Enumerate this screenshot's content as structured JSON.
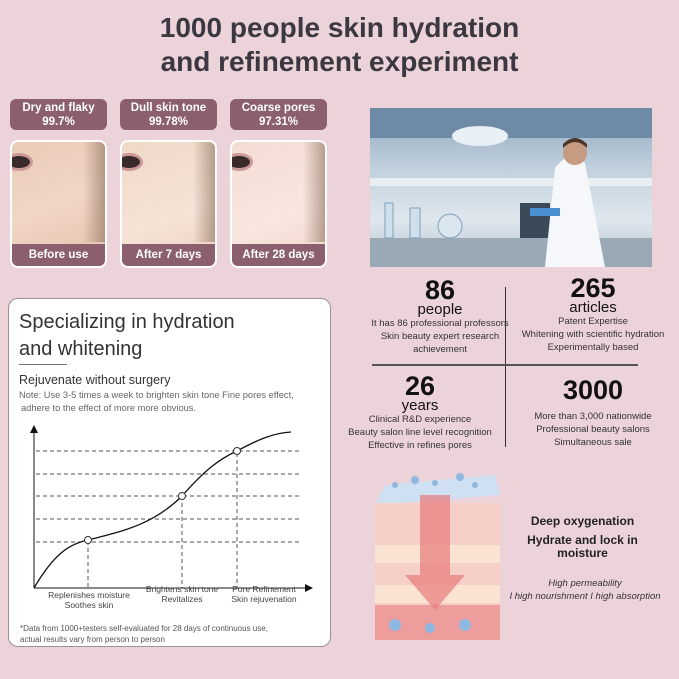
{
  "header": {
    "line1": "1000 people skin hydration",
    "line2": "and refinement experiment"
  },
  "results": [
    {
      "issue": "Dry and flaky",
      "percent": "99.7%",
      "caption": "Before use"
    },
    {
      "issue": "Dull skin tone",
      "percent": "99.78%",
      "caption": "After 7 days"
    },
    {
      "issue": "Coarse pores",
      "percent": "97.31%",
      "caption": "After 28 days"
    }
  ],
  "card": {
    "title1": "Specializing in hydration",
    "title2": "and whitening",
    "subtitle": "Rejuvenate without surgery",
    "note1": "Note: Use 3-5 times a week to brighten skin tone Fine pores effect,",
    "note2": "adhere to the effect of more more obvious.",
    "stages": [
      {
        "l1": "Replenishes moisture",
        "l2": "Soothes skin"
      },
      {
        "l1": "Brightens skin tone",
        "l2": "Revitalizes"
      },
      {
        "l1": "Pore Refinement",
        "l2": "Skin rejuvenation"
      }
    ],
    "foot1": "*Data from 1000+testers self-evaluated for 28 days of continuous use,",
    "foot2": "actual results vary from person to person"
  },
  "stats": [
    {
      "num": "86",
      "unit": "people",
      "lines": [
        "It has 86 professional professors",
        "Skin beauty expert research",
        "achievement"
      ]
    },
    {
      "num": "265",
      "unit": "articles",
      "lines": [
        "Patent Expertise",
        "Whitening with scientific hydration",
        "Experimentally based"
      ]
    },
    {
      "num": "26",
      "unit": "years",
      "lines": [
        "Clinical R&D experience",
        "Beauty salon line level recognition",
        "Effective in refines pores"
      ]
    },
    {
      "num": "3000",
      "unit": "",
      "lines": [
        "More than 3,000 nationwide",
        "Professional beauty salons",
        "Simultaneous sale"
      ]
    }
  ],
  "oxygen": {
    "h1": "Deep oxygenation",
    "h2a": "Hydrate and lock in",
    "h2b": "moisture",
    "i1": "High permeability",
    "i2": "I high nourishment I high absorption"
  },
  "colors": {
    "background": "#ecd3d9",
    "tag": "#8b5f6d"
  }
}
